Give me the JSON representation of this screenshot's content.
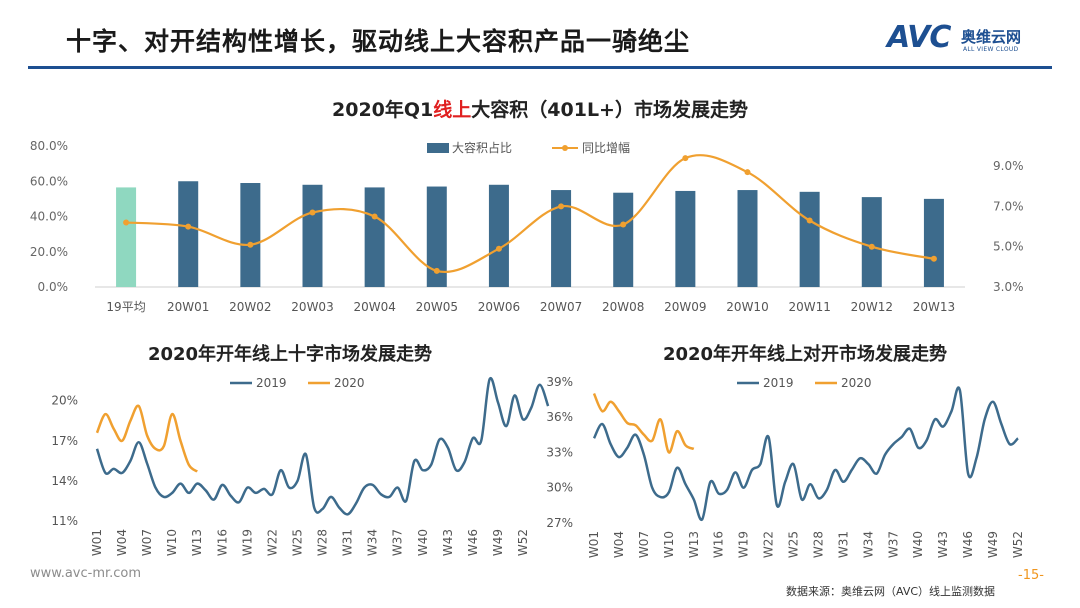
{
  "slide": {
    "title": "十字、对开结构性增长，驱动线上大容积产品一骑绝尘",
    "logo_text": "AVC",
    "logo_cn": "奥维云网",
    "logo_en": "ALL VIEW CLOUD",
    "footer_url": "www.avc-mr.com",
    "footer_source": "数据来源：奥维云网（AVC）线上监测数据",
    "page_number": "-15-"
  },
  "colors": {
    "brand": "#1d4f91",
    "bar": "#3d6b8c",
    "bar_highlight": "#8fd8c0",
    "line_orange": "#f0a030",
    "line_blue": "#3d6b8c",
    "accent_red": "#e02020"
  },
  "chart_data": [
    {
      "type": "bar",
      "title_before": "2020年Q1",
      "title_highlight": "线上",
      "title_after": "大容积（401L+）市场发展走势",
      "categories": [
        "19平均",
        "20W01",
        "20W02",
        "20W03",
        "20W04",
        "20W05",
        "20W06",
        "20W07",
        "20W08",
        "20W09",
        "20W10",
        "20W11",
        "20W12",
        "20W13"
      ],
      "series": [
        {
          "name": "大容积占比",
          "type": "bar",
          "axis": "left",
          "values": [
            56.5,
            60,
            59,
            58,
            56.5,
            57,
            58,
            55,
            53.5,
            54.5,
            55,
            54,
            51,
            50
          ]
        },
        {
          "name": "同比增幅",
          "type": "line",
          "axis": "right",
          "values": [
            6.2,
            6.0,
            5.1,
            6.7,
            6.5,
            3.8,
            4.9,
            7.0,
            6.1,
            9.4,
            8.7,
            6.3,
            5.0,
            4.4
          ]
        }
      ],
      "y_left": {
        "min": 0,
        "max": 80,
        "ticks": [
          "0.0%",
          "20.0%",
          "40.0%",
          "60.0%",
          "80.0%"
        ]
      },
      "y_right": {
        "min": 3,
        "max": 10,
        "ticks": [
          "3.0%",
          "5.0%",
          "7.0%",
          "9.0%"
        ],
        "tick_values": [
          3,
          5,
          7,
          9
        ]
      }
    },
    {
      "type": "line",
      "title": "2020年开年线上十字市场发展走势",
      "x_labels": [
        "W01",
        "W04",
        "W07",
        "W10",
        "W13",
        "W16",
        "W19",
        "W22",
        "W25",
        "W28",
        "W31",
        "W34",
        "W37",
        "W40",
        "W43",
        "W46",
        "W49",
        "W52"
      ],
      "ylim": [
        11,
        22
      ],
      "y_ticks": [
        "11%",
        "14%",
        "17%",
        "20%"
      ],
      "y_tick_values": [
        11,
        14,
        17,
        20
      ],
      "series": [
        {
          "name": "2019",
          "values": [
            16.4,
            14.6,
            14.9,
            14.6,
            15.5,
            16.9,
            15.3,
            13.5,
            12.8,
            13.1,
            13.8,
            13.1,
            13.8,
            13.3,
            12.6,
            13.7,
            12.9,
            12.4,
            13.5,
            13.1,
            13.4,
            13.0,
            14.8,
            13.5,
            14.0,
            16.0,
            12.0,
            11.9,
            12.8,
            12.0,
            11.5,
            12.3,
            13.5,
            13.7,
            13.0,
            12.8,
            13.5,
            12.5,
            15.5,
            14.8,
            15.2,
            17.1,
            16.5,
            14.8,
            15.4,
            17.2,
            17.0,
            21.6,
            19.9,
            18.1,
            20.4,
            18.6,
            19.5,
            21.2,
            19.6
          ]
        },
        {
          "name": "2020",
          "values": [
            17.6,
            19.0,
            17.9,
            17.0,
            18.5,
            19.6,
            17.4,
            16.4,
            16.6,
            19.0,
            17.0,
            15.2,
            14.7
          ]
        }
      ]
    },
    {
      "type": "line",
      "title": "2020年开年线上对开市场发展走势",
      "x_labels": [
        "W01",
        "W04",
        "W07",
        "W10",
        "W13",
        "W16",
        "W19",
        "W22",
        "W25",
        "W28",
        "W31",
        "W34",
        "W37",
        "W40",
        "W43",
        "W46",
        "W49",
        "W52"
      ],
      "ylim": [
        27,
        40
      ],
      "y_ticks": [
        "27%",
        "30%",
        "33%",
        "36%",
        "39%"
      ],
      "y_tick_values": [
        27,
        30,
        33,
        36,
        39
      ],
      "series": [
        {
          "name": "2019",
          "values": [
            34.2,
            35.4,
            33.7,
            32.6,
            33.4,
            34.5,
            32.8,
            30.0,
            29.2,
            29.6,
            31.7,
            30.3,
            29.0,
            27.3,
            30.5,
            29.5,
            29.8,
            31.3,
            30.0,
            31.5,
            32.0,
            34.3,
            28.5,
            30.5,
            32.0,
            29.0,
            30.3,
            29.1,
            29.8,
            31.5,
            30.5,
            31.5,
            32.5,
            32.0,
            31.2,
            32.8,
            33.7,
            34.3,
            35.0,
            33.4,
            34.0,
            35.8,
            35.2,
            36.5,
            38.3,
            31.2,
            32.5,
            35.8,
            37.3,
            35.4,
            33.7,
            34.2
          ]
        },
        {
          "name": "2020",
          "values": [
            38.0,
            36.5,
            37.3,
            36.5,
            35.5,
            35.3,
            34.5,
            34.0,
            35.8,
            33.0,
            34.8,
            33.6,
            33.3
          ]
        }
      ]
    }
  ]
}
